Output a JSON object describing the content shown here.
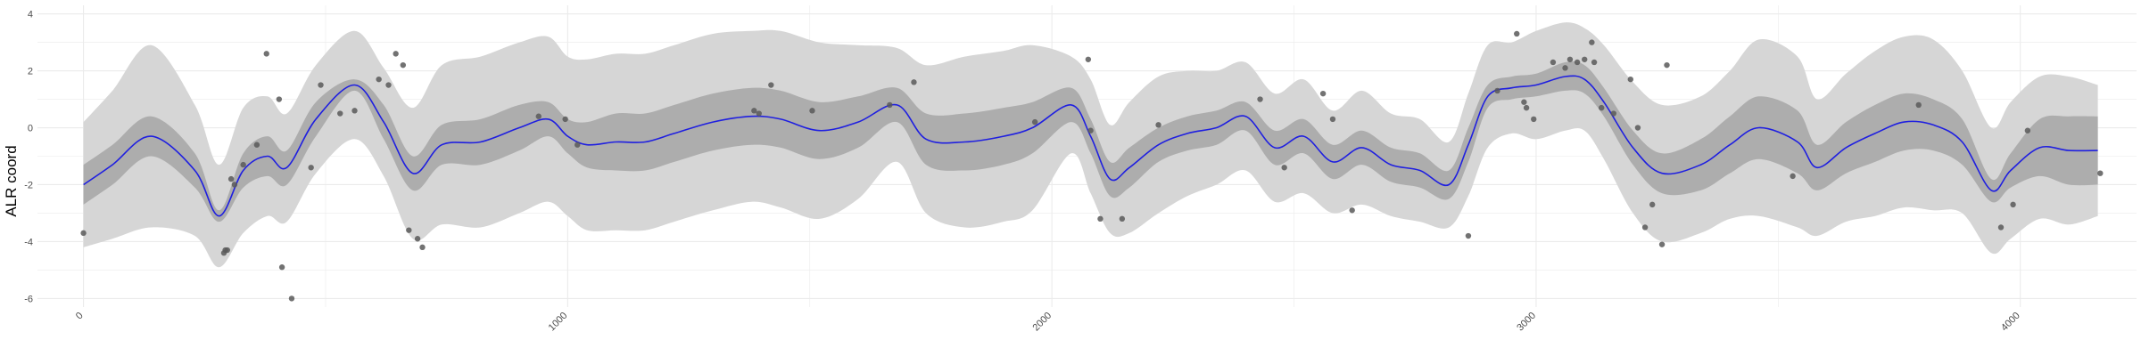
{
  "chart_data": {
    "type": "line",
    "title": "",
    "xlabel": "",
    "ylabel": "ALR coord",
    "xlim": [
      -95,
      4240
    ],
    "ylim": [
      -6.3,
      4.3
    ],
    "x_ticks": [
      "0",
      "1000",
      "2000",
      "3000",
      "4000"
    ],
    "y_ticks": [
      "4",
      "2",
      "0",
      "-2",
      "-4",
      "-6"
    ],
    "grid": "on",
    "legend": "none",
    "colors": {
      "mean_line": "#1f1fe0",
      "inner_band": "#adadad",
      "outer_band": "#d6d6d6",
      "points": "#595959",
      "grid": "#ebebeb"
    },
    "mean_curve": {
      "x": [
        0,
        60,
        140,
        230,
        280,
        330,
        380,
        420,
        480,
        560,
        620,
        680,
        740,
        820,
        900,
        960,
        1000,
        1040,
        1100,
        1160,
        1220,
        1300,
        1380,
        1440,
        1520,
        1600,
        1680,
        1740,
        1820,
        1900,
        1960,
        2040,
        2080,
        2120,
        2160,
        2220,
        2280,
        2340,
        2400,
        2460,
        2520,
        2580,
        2640,
        2700,
        2760,
        2820,
        2860,
        2900,
        2950,
        3000,
        3060,
        3100,
        3140,
        3200,
        3260,
        3340,
        3400,
        3460,
        3540,
        3580,
        3640,
        3700,
        3760,
        3820,
        3880,
        3940,
        3980,
        4040,
        4100,
        4160
      ],
      "y": [
        -2.0,
        -1.3,
        -0.3,
        -1.5,
        -3.1,
        -1.5,
        -1.0,
        -1.4,
        0.3,
        1.5,
        0.2,
        -1.6,
        -0.6,
        -0.5,
        0.0,
        0.3,
        -0.3,
        -0.6,
        -0.5,
        -0.5,
        -0.2,
        0.2,
        0.4,
        0.3,
        -0.1,
        0.2,
        0.8,
        -0.4,
        -0.5,
        -0.3,
        0.0,
        0.8,
        -0.3,
        -1.8,
        -1.4,
        -0.6,
        -0.2,
        0.0,
        0.4,
        -0.7,
        -0.3,
        -1.2,
        -0.7,
        -1.3,
        -1.5,
        -2.0,
        -0.6,
        1.1,
        1.4,
        1.5,
        1.8,
        1.7,
        0.9,
        -0.7,
        -1.6,
        -1.3,
        -0.6,
        0.0,
        -0.5,
        -1.4,
        -0.7,
        -0.2,
        0.2,
        0.1,
        -0.5,
        -2.2,
        -1.5,
        -0.7,
        -0.8,
        -0.8
      ]
    },
    "inner_band_halfwidth": [
      0.7,
      0.7,
      0.7,
      0.6,
      0.2,
      0.6,
      0.7,
      0.6,
      0.6,
      0.2,
      0.6,
      0.6,
      0.7,
      0.8,
      0.8,
      0.6,
      0.6,
      0.8,
      1.0,
      1.0,
      1.0,
      1.0,
      1.0,
      1.0,
      1.0,
      0.9,
      0.6,
      0.9,
      1.0,
      1.0,
      0.9,
      0.6,
      0.6,
      0.6,
      0.7,
      0.6,
      0.6,
      0.6,
      0.5,
      0.6,
      0.6,
      0.6,
      0.6,
      0.6,
      0.6,
      0.5,
      0.6,
      0.4,
      0.4,
      0.4,
      0.5,
      0.5,
      0.5,
      0.6,
      0.7,
      0.9,
      1.0,
      1.1,
      1.1,
      0.8,
      0.9,
      1.0,
      1.0,
      0.9,
      0.8,
      0.4,
      0.6,
      1.0,
      1.2,
      1.2
    ],
    "outer_band_halfwidth": [
      2.2,
      2.6,
      3.2,
      2.3,
      1.8,
      2.2,
      2.1,
      1.9,
      1.9,
      1.9,
      1.9,
      2.3,
      2.8,
      3.0,
      3.0,
      2.9,
      2.8,
      3.0,
      3.1,
      3.1,
      3.1,
      3.1,
      3.0,
      3.1,
      3.1,
      2.7,
      2.0,
      2.6,
      3.0,
      3.0,
      2.9,
      1.7,
      2.0,
      1.9,
      2.3,
      2.4,
      2.2,
      2.0,
      1.9,
      1.9,
      2.0,
      1.8,
      2.0,
      1.8,
      1.8,
      1.5,
      1.8,
      1.8,
      1.6,
      1.9,
      1.9,
      1.8,
      2.0,
      2.3,
      2.4,
      2.4,
      2.6,
      3.1,
      3.0,
      2.4,
      2.6,
      2.9,
      3.0,
      3.0,
      2.5,
      2.2,
      2.4,
      2.5,
      2.6,
      2.3
    ],
    "points": {
      "x": [
        0,
        290,
        293,
        297,
        305,
        312,
        330,
        358,
        378,
        404,
        410,
        430,
        470,
        490,
        530,
        560,
        610,
        630,
        645,
        660,
        672,
        690,
        700,
        940,
        995,
        1020,
        1385,
        1395,
        1420,
        1505,
        1665,
        1715,
        1965,
        2075,
        2080,
        2100,
        2145,
        2220,
        2430,
        2480,
        2560,
        2580,
        2620,
        2860,
        2920,
        2960,
        2975,
        2980,
        2995,
        3035,
        3060,
        3070,
        3085,
        3100,
        3115,
        3120,
        3135,
        3160,
        3195,
        3210,
        3225,
        3240,
        3260,
        3270,
        3530,
        3790,
        3960,
        3985,
        4015,
        4165
      ],
      "y": [
        -3.7,
        -4.4,
        -4.3,
        -4.3,
        -1.8,
        -2.0,
        -1.3,
        -0.6,
        2.6,
        1.0,
        -4.9,
        -6.0,
        -1.4,
        1.5,
        0.5,
        0.6,
        1.7,
        1.5,
        2.6,
        2.2,
        -3.6,
        -3.9,
        -4.2,
        0.4,
        0.3,
        -0.6,
        0.6,
        0.5,
        1.5,
        0.6,
        0.8,
        1.6,
        0.2,
        2.4,
        -0.1,
        -3.2,
        -3.2,
        0.1,
        1.0,
        -1.4,
        1.2,
        0.3,
        -2.9,
        -3.8,
        1.3,
        3.3,
        0.9,
        0.7,
        0.3,
        2.3,
        2.1,
        2.4,
        2.3,
        2.4,
        3.0,
        2.3,
        0.7,
        0.5,
        1.7,
        0.0,
        -3.5,
        -2.7,
        -4.1,
        2.2,
        -1.7,
        0.8,
        -3.5,
        -2.7,
        -0.1,
        -1.6
      ]
    }
  }
}
